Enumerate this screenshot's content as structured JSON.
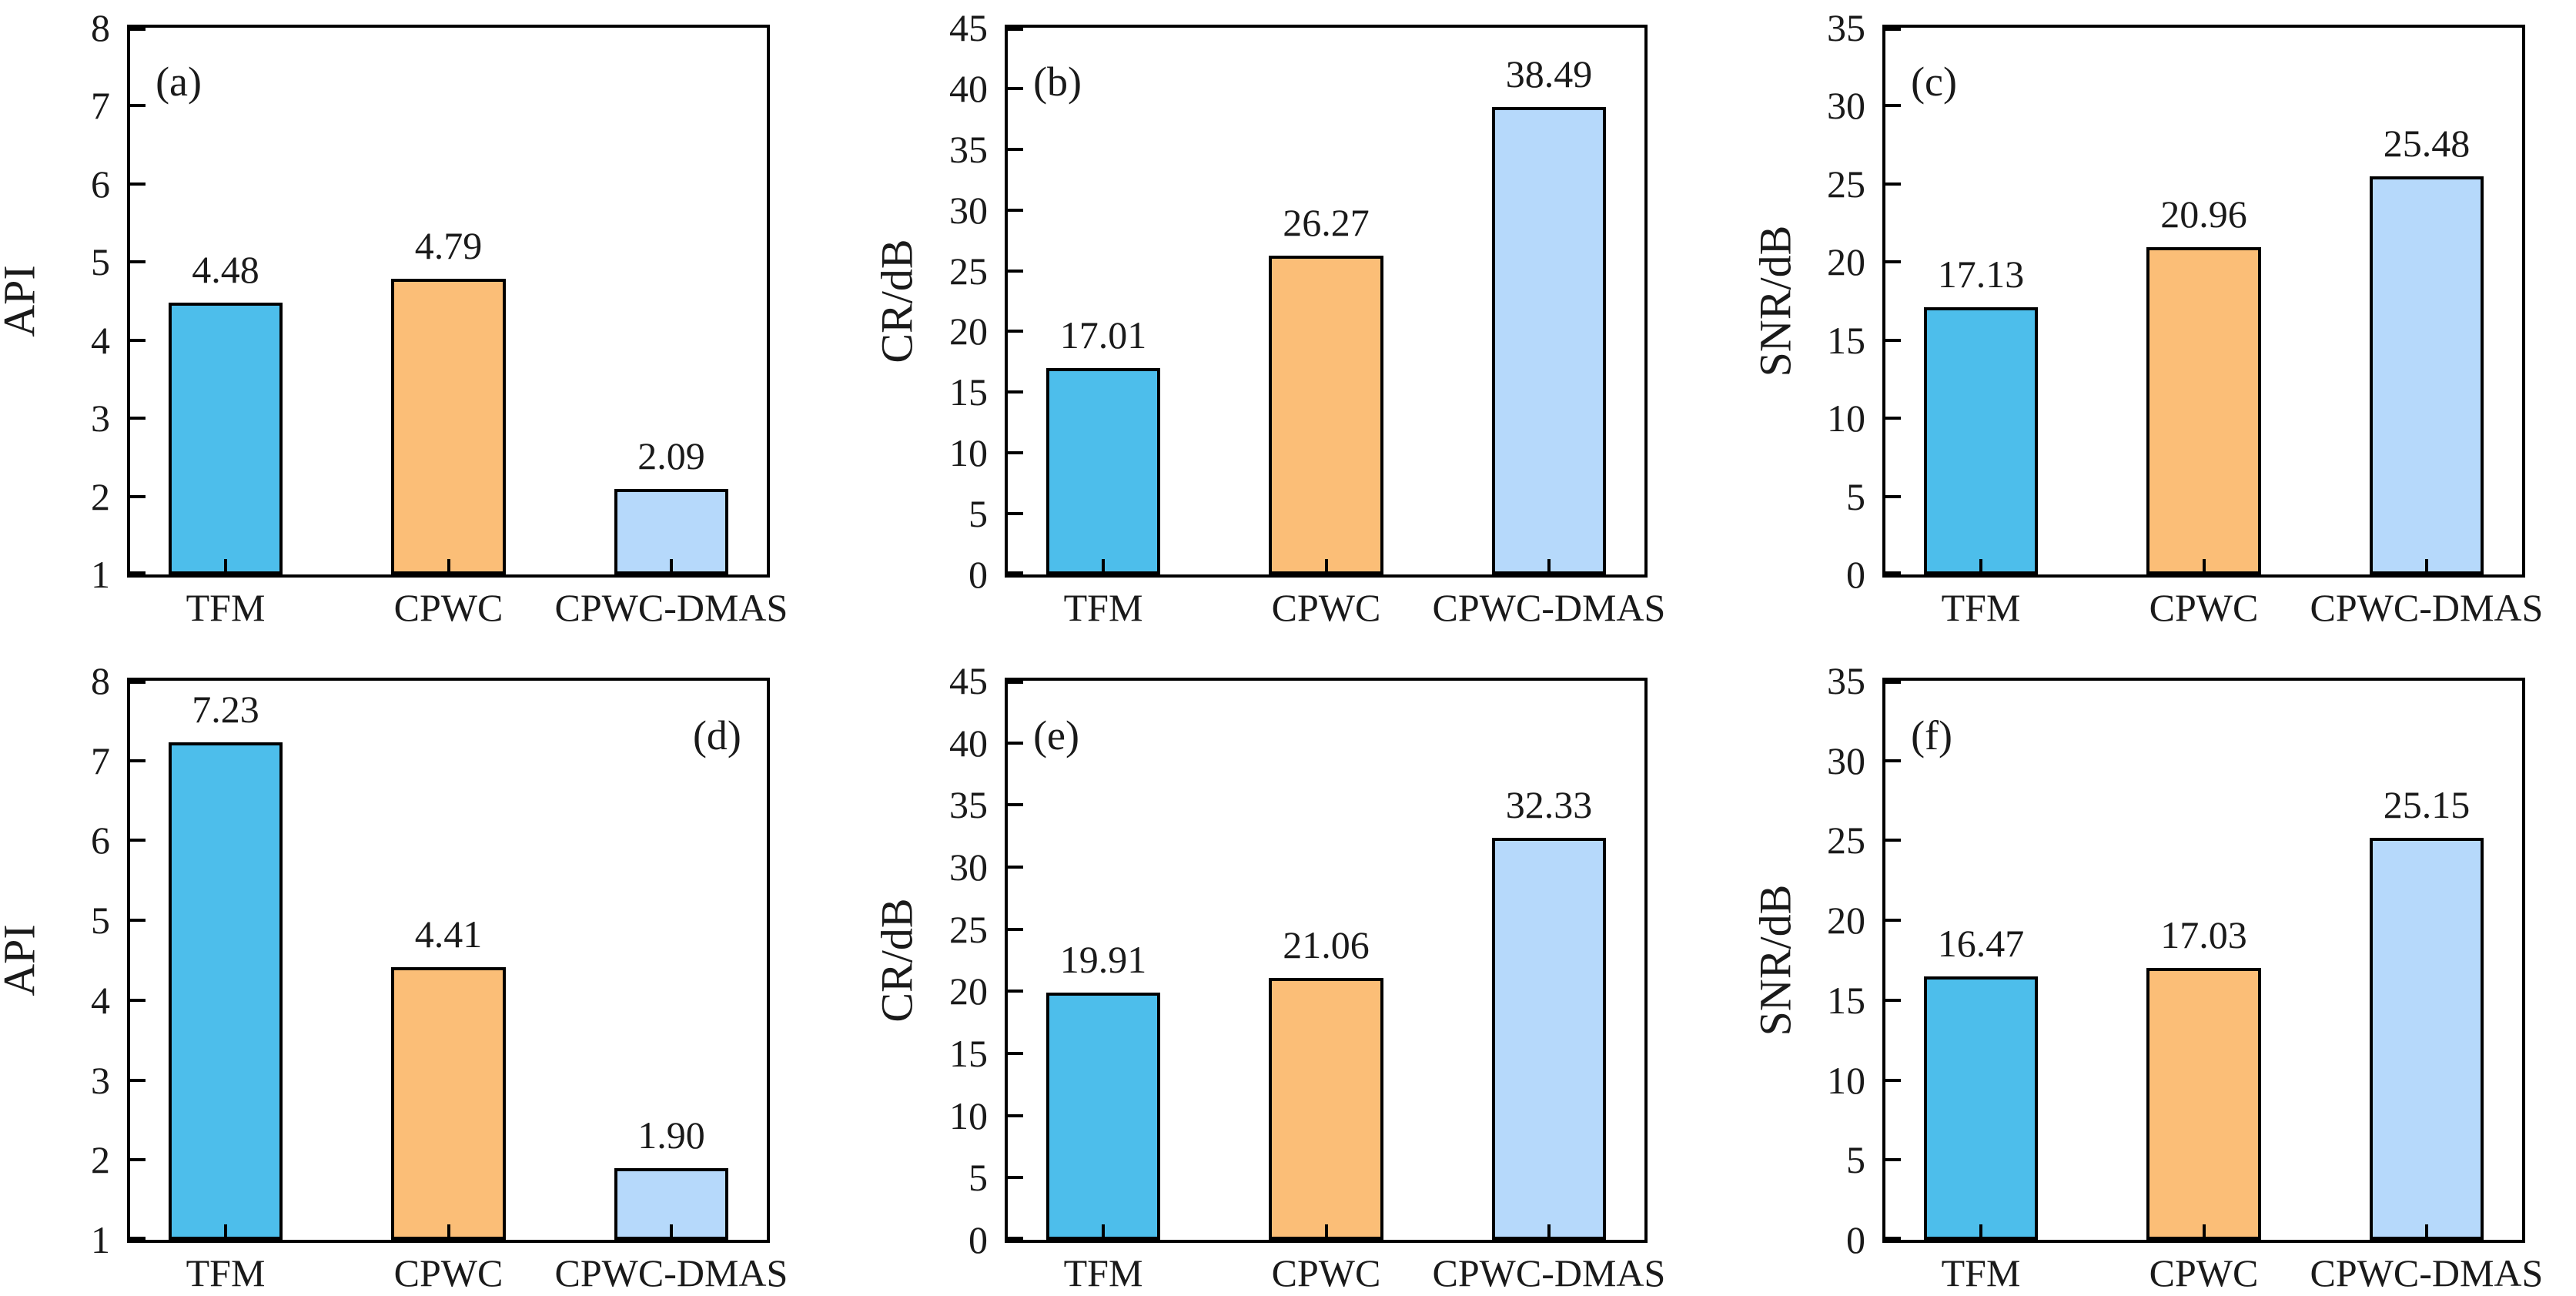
{
  "figure": {
    "background": "#ffffff",
    "bar_edge_color": "#000000",
    "bar_fill_colors": [
      "#4DBEEB",
      "#FBBE77",
      "#B6D9FB"
    ],
    "categories": [
      "TFM",
      "CPWC",
      "CPWC-DMAS"
    ]
  },
  "chart_data": [
    {
      "type": "bar",
      "panel_label": "(a)",
      "panel_label_position": "top-left",
      "ylabel": "API",
      "xlabel": "",
      "ylim": [
        1,
        8
      ],
      "ytick_step": 1,
      "grid": false,
      "legend": false,
      "categories": [
        "TFM",
        "CPWC",
        "CPWC-DMAS"
      ],
      "values": [
        4.48,
        4.79,
        2.09
      ],
      "value_labels": [
        "4.48",
        "4.79",
        "2.09"
      ]
    },
    {
      "type": "bar",
      "panel_label": "(b)",
      "panel_label_position": "top-left",
      "ylabel": "CR/dB",
      "xlabel": "",
      "ylim": [
        0,
        45
      ],
      "ytick_step": 5,
      "grid": false,
      "legend": false,
      "categories": [
        "TFM",
        "CPWC",
        "CPWC-DMAS"
      ],
      "values": [
        17.01,
        26.27,
        38.49
      ],
      "value_labels": [
        "17.01",
        "26.27",
        "38.49"
      ]
    },
    {
      "type": "bar",
      "panel_label": "(c)",
      "panel_label_position": "top-left",
      "ylabel": "SNR/dB",
      "xlabel": "",
      "ylim": [
        0,
        35
      ],
      "ytick_step": 5,
      "grid": false,
      "legend": false,
      "categories": [
        "TFM",
        "CPWC",
        "CPWC-DMAS"
      ],
      "values": [
        17.13,
        20.96,
        25.48
      ],
      "value_labels": [
        "17.13",
        "20.96",
        "25.48"
      ]
    },
    {
      "type": "bar",
      "panel_label": "(d)",
      "panel_label_position": "top-right",
      "ylabel": "API",
      "xlabel": "",
      "ylim": [
        1,
        8
      ],
      "ytick_step": 1,
      "grid": false,
      "legend": false,
      "categories": [
        "TFM",
        "CPWC",
        "CPWC-DMAS"
      ],
      "values": [
        7.23,
        4.41,
        1.9
      ],
      "value_labels": [
        "7.23",
        "4.41",
        "1.90"
      ]
    },
    {
      "type": "bar",
      "panel_label": "(e)",
      "panel_label_position": "top-left",
      "ylabel": "CR/dB",
      "xlabel": "",
      "ylim": [
        0,
        45
      ],
      "ytick_step": 5,
      "grid": false,
      "legend": false,
      "categories": [
        "TFM",
        "CPWC",
        "CPWC-DMAS"
      ],
      "values": [
        19.91,
        21.06,
        32.33
      ],
      "value_labels": [
        "19.91",
        "21.06",
        "32.33"
      ]
    },
    {
      "type": "bar",
      "panel_label": "(f)",
      "panel_label_position": "top-left",
      "ylabel": "SNR/dB",
      "xlabel": "",
      "ylim": [
        0,
        35
      ],
      "ytick_step": 5,
      "grid": false,
      "legend": false,
      "categories": [
        "TFM",
        "CPWC",
        "CPWC-DMAS"
      ],
      "values": [
        16.47,
        17.03,
        25.15
      ],
      "value_labels": [
        "16.47",
        "17.03",
        "25.15"
      ]
    }
  ]
}
